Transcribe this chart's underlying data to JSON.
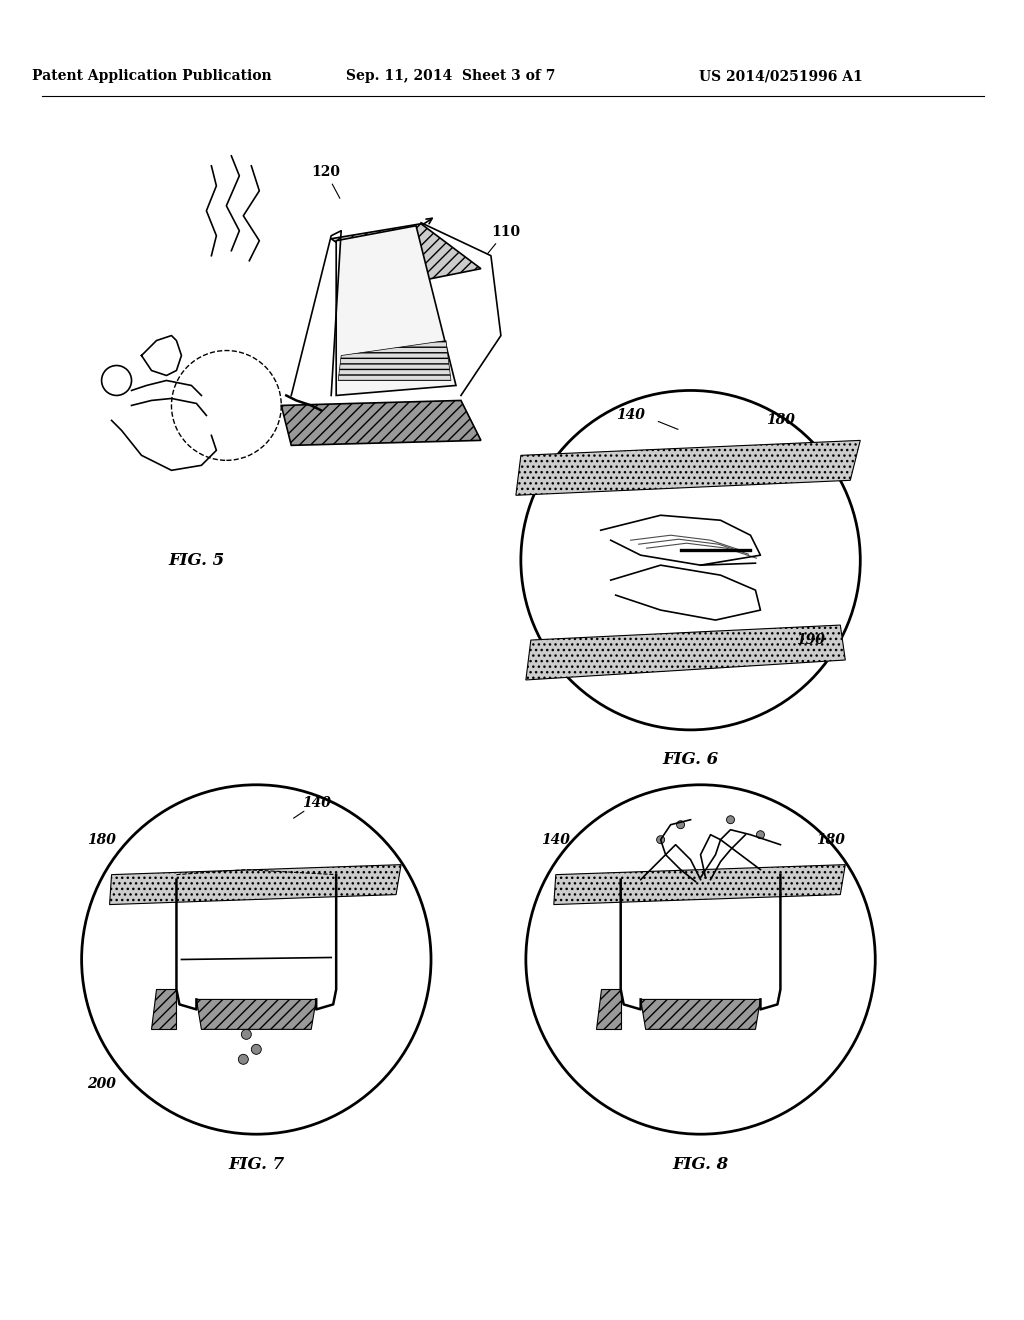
{
  "bg_color": "#ffffff",
  "header_text": "Patent Application Publication",
  "header_date": "Sep. 11, 2014  Sheet 3 of 7",
  "header_patent": "US 2014/0251996 A1",
  "fig5_label": "FIG. 5",
  "fig6_label": "FIG. 6",
  "fig7_label": "FIG. 7",
  "fig8_label": "FIG. 8",
  "label_110": "110",
  "label_120": "120",
  "label_140_1": "140",
  "label_140_2": "140",
  "label_140_3": "140",
  "label_180_1": "180",
  "label_180_2": "180",
  "label_180_3": "180",
  "label_190": "190",
  "label_200": "200",
  "line_color": "#000000",
  "hatch_color": "#555555"
}
